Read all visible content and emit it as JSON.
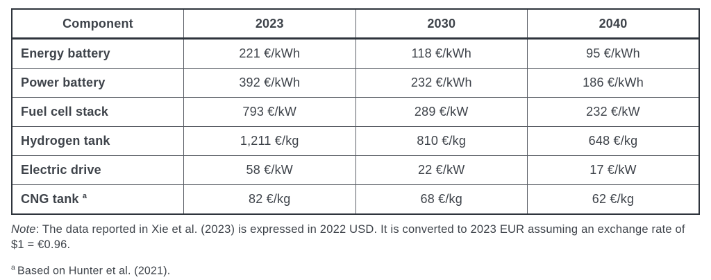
{
  "table": {
    "columns": [
      "Component",
      "2023",
      "2030",
      "2040"
    ],
    "rows": [
      {
        "component": "Energy battery",
        "values": [
          "221 €/kWh",
          "118 €/kWh",
          "95 €/kWh"
        ]
      },
      {
        "component": "Power battery",
        "values": [
          "392 €/kWh",
          "232 €/kWh",
          "186 €/kWh"
        ]
      },
      {
        "component": "Fuel cell stack",
        "values": [
          "793 €/kW",
          "289 €/kW",
          "232 €/kW"
        ]
      },
      {
        "component": "Hydrogen tank",
        "values": [
          "1,211 €/kg",
          "810 €/kg",
          "648 €/kg"
        ]
      },
      {
        "component": "Electric drive",
        "values": [
          "58 €/kW",
          "22 €/kW",
          "17 €/kW"
        ]
      },
      {
        "component": "CNG tank",
        "superscript": "a",
        "values": [
          "82 €/kg",
          "68 €/kg",
          "62 €/kg"
        ]
      }
    ]
  },
  "note": {
    "label": "Note",
    "text": ": The data reported in Xie et al. (2023) is expressed in 2022 USD. It is converted to 2023 EUR assuming an exchange rate of $1 = €0.96."
  },
  "footnote": {
    "marker": "a",
    "text": "Based on Hunter et al. (2021)."
  },
  "chart_data": {
    "type": "table",
    "columns": [
      "Component",
      "2023",
      "2030",
      "2040"
    ],
    "rows": [
      [
        "Energy battery",
        "221 €/kWh",
        "118 €/kWh",
        "95 €/kWh"
      ],
      [
        "Power battery",
        "392 €/kWh",
        "232 €/kWh",
        "186 €/kWh"
      ],
      [
        "Fuel cell stack",
        "793 €/kW",
        "289 €/kW",
        "232 €/kW"
      ],
      [
        "Hydrogen tank",
        "1,211 €/kg",
        "810 €/kg",
        "648 €/kg"
      ],
      [
        "Electric drive",
        "58 €/kW",
        "22 €/kW",
        "17 €/kW"
      ],
      [
        "CNG tank",
        "82 €/kg",
        "68 €/kg",
        "62 €/kg"
      ]
    ]
  },
  "colors": {
    "text": "#3e434a",
    "border_heavy": "#2e343c",
    "border_light": "#585d64",
    "background": "#ffffff"
  }
}
